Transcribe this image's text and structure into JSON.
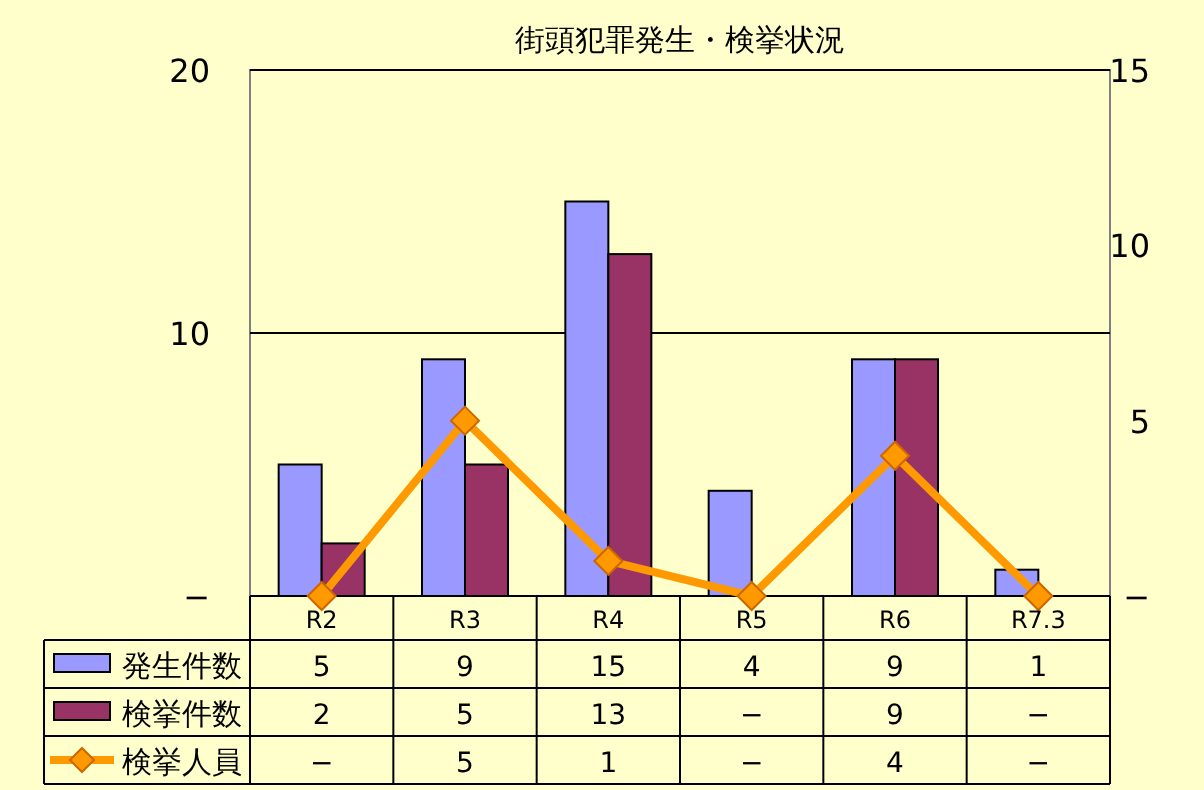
{
  "chart_data": {
    "type": "bar",
    "title": "街頭犯罪発生・検挙状況",
    "categories": [
      "R2",
      "R3",
      "R4",
      "R5",
      "R6",
      "R7.3"
    ],
    "series": [
      {
        "name": "発生件数",
        "color": "#9999ff",
        "values": [
          5,
          9,
          15,
          4,
          9,
          1
        ],
        "value_labels": [
          "5",
          "9",
          "15",
          "4",
          "9",
          "1"
        ]
      },
      {
        "name": "検挙件数",
        "color": "#993366",
        "values": [
          2,
          5,
          13,
          0,
          9,
          0
        ],
        "value_labels": [
          "2",
          "5",
          "13",
          "−",
          "9",
          "−"
        ]
      },
      {
        "name": "検挙人員",
        "type": "line",
        "axis": "y2",
        "marker": "diamond",
        "color": "#ff9900",
        "values": [
          0,
          5,
          1,
          0,
          4,
          0
        ],
        "value_labels": [
          "−",
          "5",
          "1",
          "−",
          "4",
          "−"
        ]
      }
    ],
    "ylim": [
      0,
      20
    ],
    "yticks": [
      {
        "value": 0,
        "label": "−"
      },
      10,
      20
    ],
    "y2lim": [
      0,
      15
    ],
    "y2ticks": [
      {
        "value": 0,
        "label": "−"
      },
      5,
      10,
      15
    ],
    "grid": "y",
    "legend": "bottom"
  }
}
